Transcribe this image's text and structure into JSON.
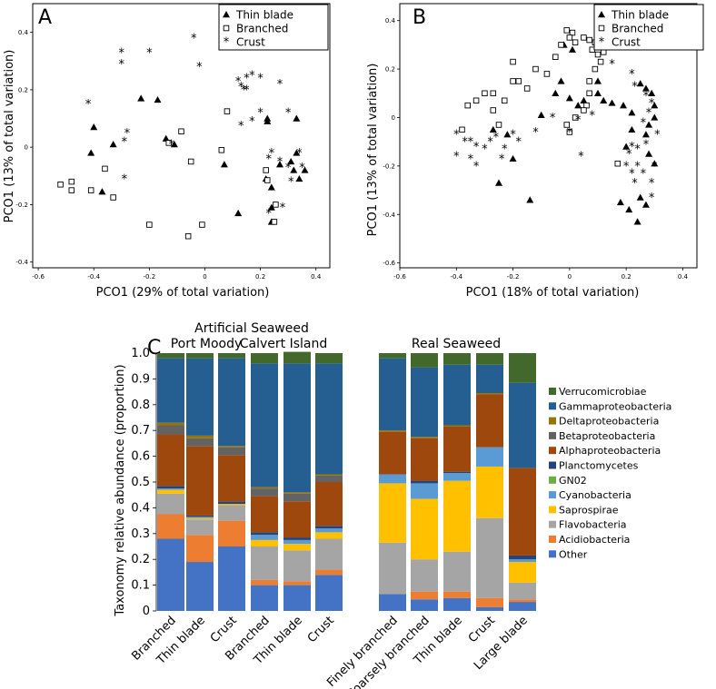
{
  "chart_data": [
    {
      "panel": "A",
      "type": "scatter",
      "xlabel": "PCO1 (29% of total variation)",
      "ylabel": "PCO1 (13% of total variation)",
      "xlim": [
        -0.62,
        0.45
      ],
      "ylim": [
        -0.42,
        0.5
      ],
      "xticks": [
        "-0.6",
        "-0.4",
        "-0.2",
        "0",
        "0.2",
        "0.4"
      ],
      "yticks": [
        "0.4",
        "0.2",
        "0",
        "-0.2",
        "-0.4"
      ],
      "legend": [
        "Thin blade",
        "Branched",
        "Crust"
      ],
      "series": [
        {
          "name": "Thin blade",
          "marker": "triangle",
          "points": [
            [
              -0.23,
              0.17
            ],
            [
              -0.17,
              0.165
            ],
            [
              -0.4,
              0.07
            ],
            [
              -0.41,
              -0.02
            ],
            [
              -0.37,
              -0.155
            ],
            [
              -0.14,
              0.03
            ],
            [
              -0.33,
              0.01
            ],
            [
              -0.11,
              0.01
            ],
            [
              0.07,
              -0.06
            ],
            [
              0.225,
              0.1
            ],
            [
              0.225,
              0.09
            ],
            [
              0.33,
              0.1
            ],
            [
              0.33,
              -0.02
            ],
            [
              0.31,
              -0.05
            ],
            [
              0.32,
              -0.08
            ],
            [
              0.36,
              -0.08
            ],
            [
              0.34,
              -0.11
            ],
            [
              0.27,
              -0.06
            ],
            [
              0.22,
              -0.11
            ],
            [
              0.24,
              -0.14
            ],
            [
              0.24,
              -0.21
            ],
            [
              0.24,
              -0.26
            ],
            [
              0.12,
              -0.23
            ]
          ]
        },
        {
          "name": "Branched",
          "marker": "square",
          "points": [
            [
              -0.52,
              -0.13
            ],
            [
              -0.48,
              -0.12
            ],
            [
              -0.48,
              -0.15
            ],
            [
              -0.41,
              -0.15
            ],
            [
              -0.36,
              -0.075
            ],
            [
              -0.33,
              -0.175
            ],
            [
              -0.2,
              -0.27
            ],
            [
              -0.13,
              0.015
            ],
            [
              -0.085,
              0.055
            ],
            [
              -0.05,
              -0.05
            ],
            [
              -0.01,
              -0.27
            ],
            [
              -0.06,
              -0.31
            ],
            [
              0.06,
              -0.01
            ],
            [
              0.08,
              0.125
            ],
            [
              0.22,
              -0.08
            ],
            [
              0.225,
              -0.115
            ],
            [
              0.255,
              -0.2
            ],
            [
              0.25,
              -0.26
            ]
          ]
        },
        {
          "name": "Crust",
          "marker": "star",
          "points": [
            [
              -0.3,
              0.33
            ],
            [
              -0.3,
              0.29
            ],
            [
              -0.2,
              0.33
            ],
            [
              -0.04,
              0.38
            ],
            [
              -0.02,
              0.28
            ],
            [
              -0.42,
              0.15
            ],
            [
              -0.28,
              0.05
            ],
            [
              -0.29,
              0.02
            ],
            [
              -0.12,
              0.01
            ],
            [
              -0.29,
              -0.11
            ],
            [
              0.2,
              0.24
            ],
            [
              0.17,
              0.25
            ],
            [
              0.15,
              0.24
            ],
            [
              0.12,
              0.23
            ],
            [
              0.13,
              0.21
            ],
            [
              0.14,
              0.2
            ],
            [
              0.15,
              0.2
            ],
            [
              0.27,
              0.22
            ],
            [
              0.3,
              0.12
            ],
            [
              0.2,
              0.12
            ],
            [
              0.17,
              0.09
            ],
            [
              0.13,
              0.075
            ],
            [
              0.31,
              -0.12
            ],
            [
              0.3,
              -0.07
            ],
            [
              0.27,
              -0.05
            ],
            [
              0.23,
              -0.04
            ],
            [
              0.24,
              -0.02
            ],
            [
              0.34,
              -0.02
            ],
            [
              0.35,
              -0.07
            ],
            [
              0.23,
              -0.23
            ],
            [
              0.28,
              -0.21
            ]
          ]
        }
      ]
    },
    {
      "panel": "B",
      "type": "scatter",
      "xlabel": "PCO1 (18% of total variation)",
      "ylabel": "PCO1 (13% of total variation)",
      "xlim": [
        -0.6,
        0.45
      ],
      "ylim": [
        -0.62,
        0.47
      ],
      "xticks": [
        "-0.6",
        "-0.4",
        "-0.2",
        "0",
        "0.2",
        "0.4"
      ],
      "yticks": [
        "0.4",
        "0.2",
        "0",
        "-0.2",
        "-0.4",
        "-0.6"
      ],
      "legend": [
        "Thin blade",
        "Branched",
        "Crust"
      ],
      "series": [
        {
          "name": "Thin blade",
          "marker": "triangle",
          "points": [
            [
              -0.25,
              -0.27
            ],
            [
              -0.14,
              -0.34
            ],
            [
              -0.2,
              -0.17
            ],
            [
              -0.22,
              -0.07
            ],
            [
              -0.27,
              -0.05
            ],
            [
              -0.1,
              0.01
            ],
            [
              -0.05,
              0.1
            ],
            [
              0.0,
              0.08
            ],
            [
              -0.03,
              0.15
            ],
            [
              -0.02,
              0.3
            ],
            [
              0.01,
              0.28
            ],
            [
              0.03,
              0.05
            ],
            [
              0.05,
              0.07
            ],
            [
              0.1,
              0.15
            ],
            [
              0.1,
              0.1
            ],
            [
              0.12,
              0.07
            ],
            [
              0.15,
              0.06
            ],
            [
              0.19,
              0.05
            ],
            [
              0.25,
              0.14
            ],
            [
              0.27,
              0.12
            ],
            [
              0.29,
              0.1
            ],
            [
              0.22,
              0.02
            ],
            [
              0.3,
              0.05
            ],
            [
              0.3,
              0.0
            ],
            [
              0.28,
              -0.03
            ],
            [
              0.22,
              -0.05
            ],
            [
              0.27,
              -0.07
            ],
            [
              0.2,
              -0.12
            ],
            [
              0.28,
              -0.15
            ],
            [
              0.3,
              -0.19
            ],
            [
              0.18,
              -0.35
            ],
            [
              0.21,
              -0.38
            ],
            [
              0.25,
              -0.33
            ],
            [
              0.27,
              -0.36
            ],
            [
              0.24,
              -0.43
            ]
          ]
        },
        {
          "name": "Branched",
          "marker": "square",
          "points": [
            [
              -0.36,
              0.05
            ],
            [
              -0.38,
              -0.05
            ],
            [
              -0.33,
              0.07
            ],
            [
              -0.3,
              0.1
            ],
            [
              -0.27,
              0.1
            ],
            [
              -0.27,
              0.03
            ],
            [
              -0.25,
              -0.03
            ],
            [
              -0.23,
              0.07
            ],
            [
              -0.2,
              0.15
            ],
            [
              -0.2,
              0.23
            ],
            [
              -0.18,
              0.15
            ],
            [
              -0.15,
              0.12
            ],
            [
              -0.12,
              0.2
            ],
            [
              -0.08,
              0.18
            ],
            [
              -0.05,
              0.25
            ],
            [
              -0.03,
              0.3
            ],
            [
              -0.01,
              0.36
            ],
            [
              0.01,
              0.35
            ],
            [
              0.0,
              0.33
            ],
            [
              0.02,
              0.31
            ],
            [
              0.05,
              0.33
            ],
            [
              0.07,
              0.32
            ],
            [
              0.09,
              0.31
            ],
            [
              0.08,
              0.28
            ],
            [
              0.1,
              0.26
            ],
            [
              0.12,
              0.27
            ],
            [
              0.11,
              0.23
            ],
            [
              0.09,
              0.2
            ],
            [
              0.07,
              0.15
            ],
            [
              0.07,
              0.1
            ],
            [
              0.06,
              0.05
            ],
            [
              0.05,
              0.03
            ],
            [
              0.02,
              0.0
            ],
            [
              -0.01,
              -0.03
            ],
            [
              0.0,
              -0.06
            ],
            [
              0.17,
              -0.19
            ]
          ]
        },
        {
          "name": "Crust",
          "marker": "star",
          "points": [
            [
              -0.4,
              -0.07
            ],
            [
              -0.4,
              -0.16
            ],
            [
              -0.37,
              -0.1
            ],
            [
              -0.35,
              -0.1
            ],
            [
              -0.33,
              -0.12
            ],
            [
              -0.35,
              -0.17
            ],
            [
              -0.33,
              -0.2
            ],
            [
              -0.3,
              -0.13
            ],
            [
              -0.28,
              -0.1
            ],
            [
              -0.26,
              -0.08
            ],
            [
              -0.24,
              -0.17
            ],
            [
              -0.23,
              -0.13
            ],
            [
              -0.2,
              -0.07
            ],
            [
              -0.18,
              -0.1
            ],
            [
              -0.12,
              -0.06
            ],
            [
              -0.06,
              0.0
            ],
            [
              0.0,
              -0.06
            ],
            [
              0.03,
              -0.01
            ],
            [
              0.04,
              -0.16
            ],
            [
              0.08,
              0.01
            ],
            [
              0.22,
              0.18
            ],
            [
              0.23,
              0.13
            ],
            [
              0.27,
              0.09
            ],
            [
              0.29,
              0.06
            ],
            [
              0.28,
              0.02
            ],
            [
              0.26,
              -0.02
            ],
            [
              0.31,
              -0.07
            ],
            [
              0.22,
              -0.12
            ],
            [
              0.24,
              -0.13
            ],
            [
              0.27,
              -0.11
            ],
            [
              0.2,
              -0.2
            ],
            [
              0.24,
              -0.2
            ],
            [
              0.22,
              -0.23
            ],
            [
              0.23,
              -0.27
            ],
            [
              0.26,
              -0.23
            ],
            [
              0.3,
              -0.2
            ],
            [
              0.29,
              -0.27
            ],
            [
              0.29,
              -0.33
            ],
            [
              0.15,
              0.22
            ],
            [
              0.21,
              -0.15
            ]
          ]
        }
      ]
    },
    {
      "panel": "C",
      "type": "bar",
      "stacked": true,
      "ylabel": "Taxonomy relative abundance (proportion)",
      "ylim": [
        0,
        1.0
      ],
      "yticks": [
        "0",
        "0.1",
        "0.2",
        "0.3",
        "0.4",
        "0.5",
        "0.6",
        "0.7",
        "0.8",
        "0.9",
        "1.0"
      ],
      "title_left": "Artificial Seaweed",
      "title_right": "Real Seaweed",
      "groups": [
        "Port Moody",
        "Calvert Island"
      ],
      "categories": [
        "Branched",
        "Thin blade",
        "Crust",
        "Branched",
        "Thin blade",
        "Crust",
        "Finely branched",
        "Coarsely branched",
        "Thin blade",
        "Crust",
        "Large blade"
      ],
      "series": [
        {
          "name": "Other",
          "values": [
            0.28,
            0.19,
            0.25,
            0.1,
            0.1,
            0.14,
            0.065,
            0.045,
            0.05,
            0.015,
            0.035
          ]
        },
        {
          "name": "Acidiobacteria",
          "values": [
            0.095,
            0.105,
            0.1,
            0.02,
            0.015,
            0.02,
            0.0,
            0.03,
            0.025,
            0.035,
            0.01
          ]
        },
        {
          "name": "Flavobacteria",
          "values": [
            0.08,
            0.06,
            0.06,
            0.13,
            0.12,
            0.12,
            0.2,
            0.125,
            0.155,
            0.31,
            0.065
          ]
        },
        {
          "name": "Saprospirae",
          "values": [
            0.015,
            0.005,
            0.005,
            0.025,
            0.025,
            0.025,
            0.23,
            0.235,
            0.275,
            0.2,
            0.08
          ]
        },
        {
          "name": "Cyanobacteria",
          "values": [
            0.005,
            0.005,
            0.0,
            0.02,
            0.015,
            0.015,
            0.035,
            0.06,
            0.03,
            0.075,
            0.01
          ]
        },
        {
          "name": "GN02",
          "values": [
            0.0,
            0.0,
            0.0,
            0.0,
            0.0,
            0.0,
            0.0,
            0.0,
            0.0,
            0.0,
            0.0
          ]
        },
        {
          "name": "Planctomycetes",
          "values": [
            0.01,
            0.005,
            0.01,
            0.01,
            0.01,
            0.01,
            0.0,
            0.01,
            0.005,
            0.0,
            0.015
          ]
        },
        {
          "name": "Alphaproteobacteria",
          "values": [
            0.2,
            0.27,
            0.18,
            0.14,
            0.14,
            0.17,
            0.165,
            0.165,
            0.175,
            0.205,
            0.34
          ]
        },
        {
          "name": "Betaproteobacteria",
          "values": [
            0.035,
            0.03,
            0.03,
            0.03,
            0.03,
            0.025,
            0.0,
            0.0,
            0.0,
            0.0,
            0.0
          ]
        },
        {
          "name": "Deltaproteobacteria",
          "values": [
            0.01,
            0.01,
            0.005,
            0.005,
            0.005,
            0.005,
            0.005,
            0.005,
            0.005,
            0.005,
            0.0
          ]
        },
        {
          "name": "Gammaproteobacteria",
          "values": [
            0.25,
            0.3,
            0.34,
            0.48,
            0.5,
            0.43,
            0.28,
            0.27,
            0.235,
            0.11,
            0.33
          ]
        },
        {
          "name": "Verrucomicrobiae",
          "values": [
            0.02,
            0.02,
            0.02,
            0.04,
            0.045,
            0.04,
            0.02,
            0.055,
            0.045,
            0.045,
            0.115
          ]
        }
      ],
      "legend": [
        "Verrucomicrobiae",
        "Gammaproteobacteria",
        "Deltaproteobacteria",
        "Betaproteobacteria",
        "Alphaproteobacteria",
        "Planctomycetes",
        "GN02",
        "Cyanobacteria",
        "Saprospirae",
        "Flavobacteria",
        "Acidiobacteria",
        "Other"
      ]
    }
  ],
  "colors": {
    "Other": "#4472c4",
    "Acidiobacteria": "#ed7d31",
    "Flavobacteria": "#a5a5a5",
    "Saprospirae": "#ffc000",
    "Cyanobacteria": "#5b9bd5",
    "GN02": "#70ad47",
    "Planctomycetes": "#264478",
    "Alphaproteobacteria": "#9e480e",
    "Betaproteobacteria": "#636363",
    "Deltaproteobacteria": "#997300",
    "Gammaproteobacteria": "#255e91",
    "Verrucomicrobiae": "#43682b"
  }
}
